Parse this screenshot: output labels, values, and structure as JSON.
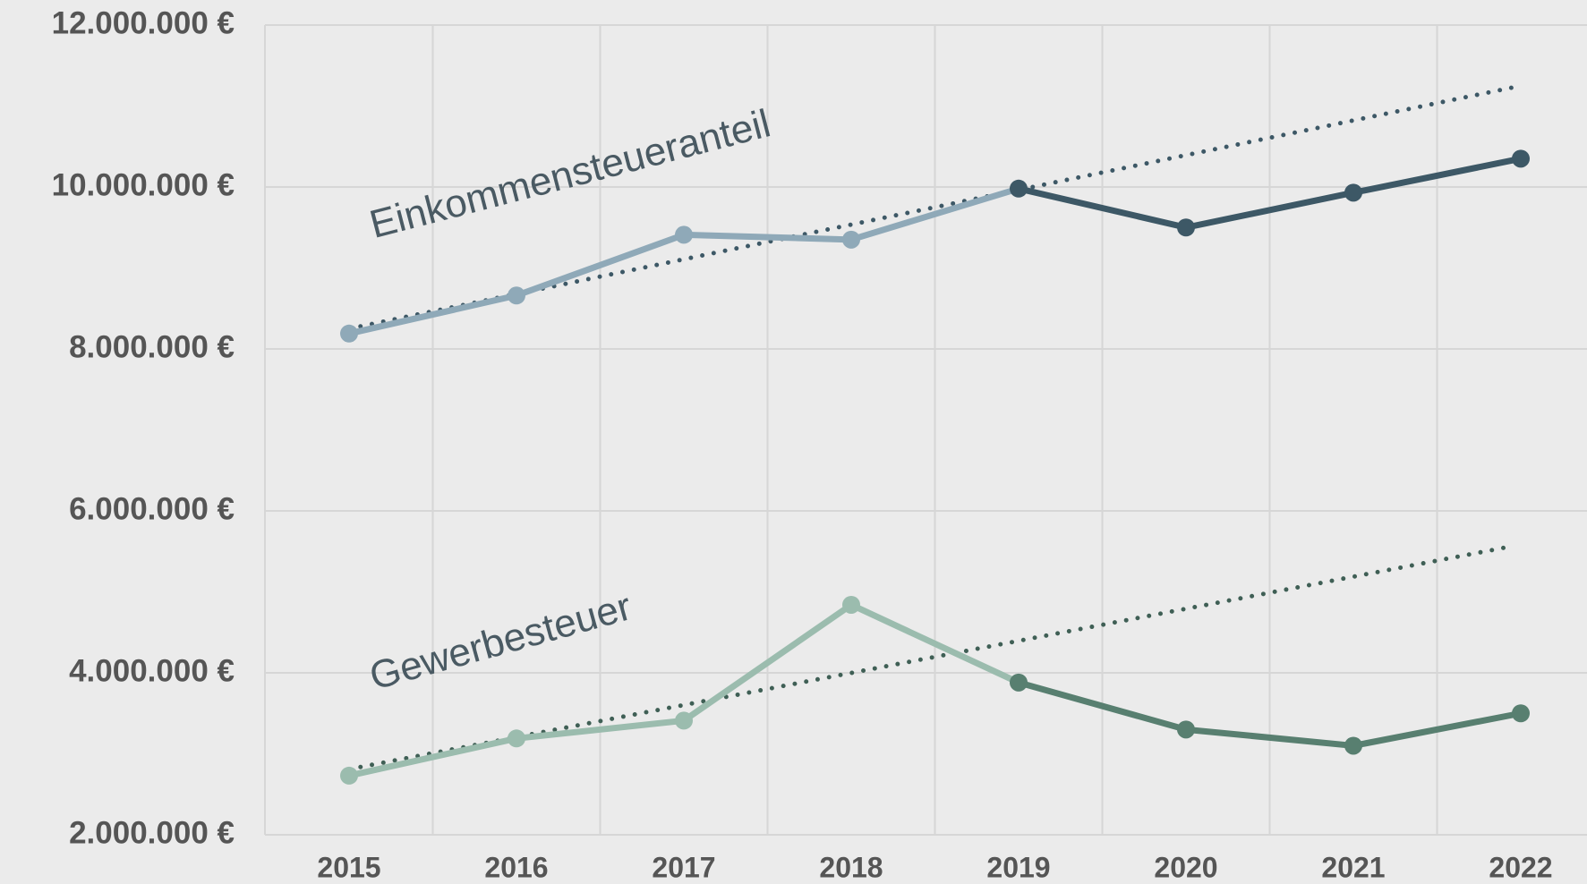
{
  "chart_data": {
    "type": "line",
    "categories": [
      "2015",
      "2016",
      "2017",
      "2018",
      "2019",
      "2020",
      "2021",
      "2022"
    ],
    "series": [
      {
        "name": "Einkommensteueranteil",
        "color": "#8fa9b8",
        "highlight_color": "#3d5866",
        "highlight_from": "2019",
        "values": [
          8190000,
          8660000,
          9410000,
          9350000,
          9980000,
          9500000,
          9930000,
          10350000
        ],
        "trend": [
          8250000,
          11250000
        ],
        "trend_color": "#3d5866"
      },
      {
        "name": "Gewerbesteuer",
        "color": "#9bbcae",
        "highlight_color": "#587f70",
        "highlight_from": "2019",
        "values": [
          2730000,
          3190000,
          3410000,
          4840000,
          3880000,
          3300000,
          3100000,
          3500000
        ],
        "trend": [
          2810000,
          5560000
        ],
        "trend_color": "#3f5f55"
      }
    ],
    "ylim": [
      2000000,
      12000000
    ],
    "yticks": [
      {
        "value": 2000000,
        "label": "2.000.000 €"
      },
      {
        "value": 4000000,
        "label": "4.000.000 €"
      },
      {
        "value": 6000000,
        "label": "6.000.000 €"
      },
      {
        "value": 8000000,
        "label": "8.000.000 €"
      },
      {
        "value": 10000000,
        "label": "10.000.000 €"
      },
      {
        "value": 12000000,
        "label": "12.000.000 €"
      }
    ],
    "grid": true
  }
}
